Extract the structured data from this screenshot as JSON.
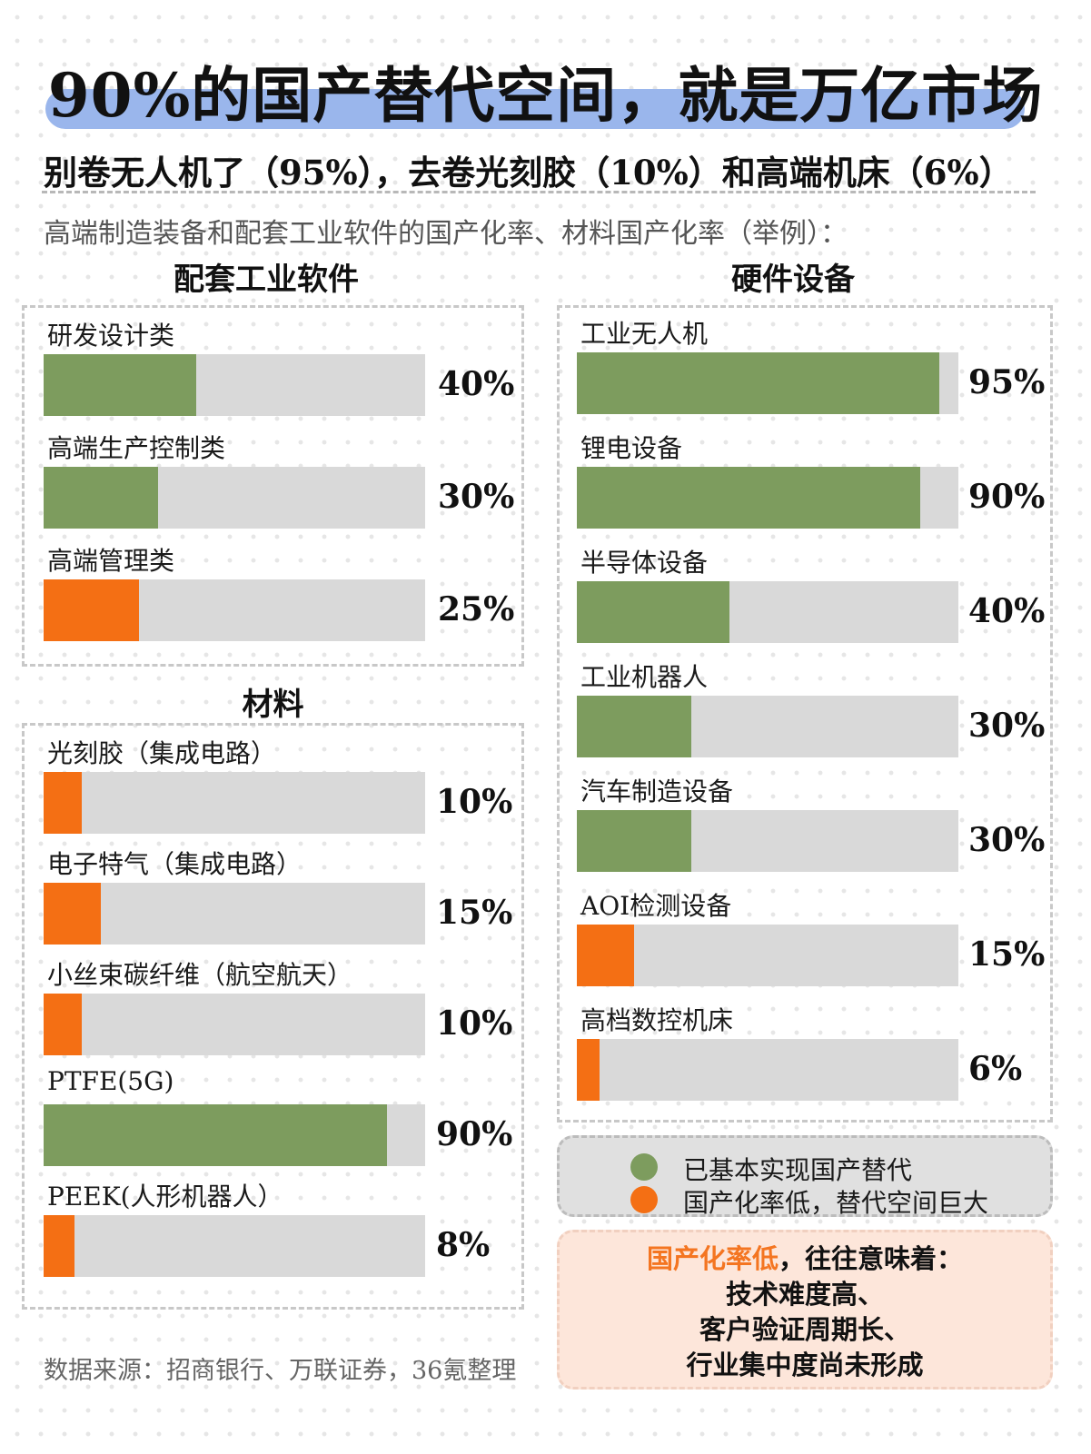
{
  "header": {
    "title": "90%的国产替代空间，就是万亿市场",
    "subtitle": "别卷无人机了（95%），去卷光刻胶（10%）和高端机床（6%）",
    "description": "高端制造装备和配套工业软件的国产化率、材料国产化率（举例）："
  },
  "colors": {
    "achieved": "#7d9c5e",
    "low": "#f46f14",
    "track": "#d9d9d9",
    "title_band": "#9ab6ec"
  },
  "legend": {
    "achieved": "已基本实现国产替代",
    "low": "国产化率低，替代空间巨大"
  },
  "note": {
    "highlight": "国产化率低",
    "line1_rest": "，往往意味着：",
    "line2": "技术难度高、",
    "line3": "客户验证周期长、",
    "line4": "行业集中度尚未形成"
  },
  "source": "数据来源：招商银行、万联证券，36氪整理",
  "chart_data": [
    {
      "type": "bar",
      "title": "配套工业软件",
      "xlim": [
        0,
        100
      ],
      "unit": "%",
      "categories": [
        "研发设计类",
        "高端生产控制类",
        "高端管理类"
      ],
      "values": [
        40,
        30,
        25
      ],
      "value_labels": [
        "40%",
        "30%",
        "25%"
      ],
      "status": [
        "achieved",
        "achieved",
        "low"
      ]
    },
    {
      "type": "bar",
      "title": "材料",
      "xlim": [
        0,
        100
      ],
      "unit": "%",
      "categories": [
        "光刻胶（集成电路）",
        "电子特气（集成电路）",
        "小丝束碳纤维（航空航天）",
        "PTFE(5G)",
        "PEEK(人形机器人）"
      ],
      "values": [
        10,
        15,
        10,
        90,
        8
      ],
      "value_labels": [
        "10%",
        "15%",
        "10%",
        "90%",
        "8%"
      ],
      "status": [
        "low",
        "low",
        "low",
        "achieved",
        "low"
      ]
    },
    {
      "type": "bar",
      "title": "硬件设备",
      "xlim": [
        0,
        100
      ],
      "unit": "%",
      "categories": [
        "工业无人机",
        "锂电设备",
        "半导体设备",
        "工业机器人",
        "汽车制造设备",
        "AOI检测设备",
        "高档数控机床"
      ],
      "values": [
        95,
        90,
        40,
        30,
        30,
        15,
        6
      ],
      "value_labels": [
        "95%",
        "90%",
        "40%",
        "30%",
        "30%",
        "15%",
        "6%"
      ],
      "status": [
        "achieved",
        "achieved",
        "achieved",
        "achieved",
        "achieved",
        "low",
        "low"
      ]
    }
  ]
}
